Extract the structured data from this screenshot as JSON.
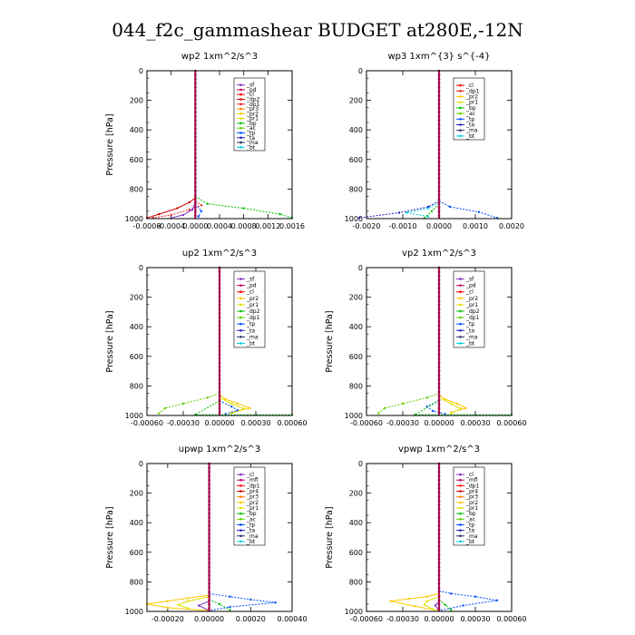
{
  "title": "044_f2c_gammashear  BUDGET at280E,-12N",
  "chart_data": [
    {
      "type": "line",
      "title": "wp2   1xm^2/s^3",
      "ylabel": "Pressure [hPa]",
      "xlim": [
        -0.0008,
        0.0016
      ],
      "ylim": [
        1000,
        0
      ],
      "xticks": [
        -0.0008,
        -0.0004,
        0.0,
        0.0004,
        0.0008,
        0.0012,
        0.0016
      ],
      "xtick_labels": [
        "-0.0008",
        "-0.0004",
        "0.0000",
        "0.0004",
        "0.0008",
        "0.0012",
        "0.0016"
      ],
      "yticks": [
        0,
        200,
        400,
        600,
        800,
        1000
      ],
      "ytick_labels": [
        "0",
        "200",
        "400",
        "600",
        "800",
        "1000"
      ],
      "legend": [
        "_sf",
        "_pd",
        "_cl",
        "_dp2",
        "_dp1",
        "_pr3",
        "_pr2",
        "_pr1",
        "_bp",
        "_ac",
        "_tp",
        "_ta",
        "_ma",
        "_bt"
      ],
      "legend_colors": [
        "#8030c0",
        "#c00060",
        "#ff0000",
        "#d00000",
        "#e02020",
        "#ff8000",
        "#ffc800",
        "#e0e000",
        "#00c000",
        "#60d000",
        "#0050ff",
        "#2020c0",
        "#303060",
        "#00d0e0"
      ],
      "series": [
        {
          "color": "#00c000",
          "dashed": true,
          "points": [
            [
              0,
              850
            ],
            [
              0.0002,
              900
            ],
            [
              0.0008,
              930
            ],
            [
              0.0014,
              970
            ],
            [
              0.0016,
              995
            ]
          ]
        },
        {
          "color": "#d00000",
          "dashed": false,
          "points": [
            [
              0,
              860
            ],
            [
              -0.0001,
              890
            ],
            [
              -0.0003,
              930
            ],
            [
              -0.0006,
              970
            ],
            [
              -0.0008,
              995
            ]
          ]
        },
        {
          "color": "#e02020",
          "dashed": true,
          "points": [
            [
              0,
              880
            ],
            [
              0.0001,
              910
            ],
            [
              -0.0001,
              940
            ],
            [
              -0.0004,
              975
            ],
            [
              -0.0007,
              995
            ]
          ]
        },
        {
          "color": "#8030c0",
          "dashed": false,
          "points": [
            [
              0,
              890
            ],
            [
              -5e-05,
              940
            ],
            [
              -0.0002,
              975
            ],
            [
              -0.0004,
              995
            ]
          ]
        },
        {
          "color": "#0050ff",
          "dashed": true,
          "points": [
            [
              0,
              900
            ],
            [
              0.0001,
              950
            ],
            [
              5e-05,
              985
            ]
          ]
        }
      ]
    },
    {
      "type": "line",
      "title": "wp3   1xm^{3} s^{-4}",
      "ylabel": "",
      "xlim": [
        -0.002,
        0.002
      ],
      "ylim": [
        1000,
        0
      ],
      "xticks": [
        -0.002,
        -0.001,
        0.0,
        0.001,
        0.002
      ],
      "xtick_labels": [
        "-0.0020",
        "-0.0010",
        "0.0000",
        "0.0010",
        "0.0020"
      ],
      "yticks": [
        0,
        200,
        400,
        600,
        800,
        1000
      ],
      "ytick_labels": [
        "0",
        "200",
        "400",
        "600",
        "800",
        "1000"
      ],
      "legend": [
        "_cl",
        "_dp1",
        "_pr2",
        "_pr1",
        "_bp",
        "_ac",
        "_tp",
        "_ta",
        "_ma",
        "_bt"
      ],
      "legend_colors": [
        "#ff0000",
        "#e02020",
        "#ffc800",
        "#e0e000",
        "#00c000",
        "#60d000",
        "#0050ff",
        "#2020c0",
        "#303060",
        "#00d0e0"
      ],
      "series": [
        {
          "color": "#2020c0",
          "dashed": true,
          "points": [
            [
              0,
              880
            ],
            [
              -0.0003,
              920
            ],
            [
              -0.0011,
              960
            ],
            [
              -0.0022,
              995
            ]
          ]
        },
        {
          "color": "#0050ff",
          "dashed": true,
          "points": [
            [
              0,
              880
            ],
            [
              0.0003,
              920
            ],
            [
              0.0011,
              955
            ],
            [
              0.0016,
              995
            ]
          ]
        },
        {
          "color": "#00d0e0",
          "dashed": true,
          "points": [
            [
              0,
              890
            ],
            [
              -0.0003,
              930
            ],
            [
              -0.0009,
              960
            ],
            [
              -0.0003,
              985
            ]
          ]
        },
        {
          "color": "#00c000",
          "dashed": true,
          "points": [
            [
              0,
              900
            ],
            [
              -0.0002,
              950
            ],
            [
              -0.0004,
              995
            ]
          ]
        }
      ]
    },
    {
      "type": "line",
      "title": "up2   1xm^2/s^3",
      "ylabel": "Pressure [hPa]",
      "xlim": [
        -0.0006,
        0.0006
      ],
      "ylim": [
        1000,
        0
      ],
      "xticks": [
        -0.0006,
        -0.0003,
        0.0,
        0.0003,
        0.0006
      ],
      "xtick_labels": [
        "-0.00060",
        "-0.00030",
        "0.00000",
        "0.00030",
        "0.00060"
      ],
      "yticks": [
        0,
        200,
        400,
        600,
        800,
        1000
      ],
      "ytick_labels": [
        "0",
        "200",
        "400",
        "600",
        "800",
        "1000"
      ],
      "legend": [
        "_sf",
        "_pd",
        "_cl",
        "_pr2",
        "_pr1",
        "_dp2",
        "_dp1",
        "_tp",
        "_ta",
        "_ma",
        "_bt"
      ],
      "legend_colors": [
        "#8030c0",
        "#c00060",
        "#ff0000",
        "#ffc800",
        "#e0e000",
        "#00c000",
        "#60d000",
        "#0050ff",
        "#2020c0",
        "#303060",
        "#00d0e0"
      ],
      "series": [
        {
          "color": "#60d000",
          "dashed": true,
          "points": [
            [
              0,
              850
            ],
            [
              -0.0001,
              880
            ],
            [
              -0.0003,
              920
            ],
            [
              -0.00045,
              950
            ],
            [
              -0.0005,
              985
            ]
          ]
        },
        {
          "color": "#ffc800",
          "dashed": false,
          "points": [
            [
              0,
              860
            ],
            [
              5e-05,
              890
            ],
            [
              0.00015,
              920
            ],
            [
              0.00025,
              950
            ],
            [
              0.0001,
              980
            ]
          ]
        },
        {
          "color": "#e0e000",
          "dashed": false,
          "points": [
            [
              0,
              880
            ],
            [
              0.0001,
              920
            ],
            [
              0.0002,
              955
            ],
            [
              0.0001,
              985
            ]
          ]
        },
        {
          "color": "#0050ff",
          "dashed": true,
          "points": [
            [
              0,
              900
            ],
            [
              0.0001,
              940
            ],
            [
              0.00015,
              965
            ],
            [
              5e-05,
              990
            ]
          ]
        },
        {
          "color": "#00c000",
          "dashed": true,
          "points": [
            [
              0,
              900
            ],
            [
              -0.0002,
              995
            ],
            [
              0.0006,
              995
            ]
          ]
        }
      ]
    },
    {
      "type": "line",
      "title": "vp2   1xm^2/s^3",
      "ylabel": "Pressure [hPa]",
      "xlim": [
        -0.0006,
        0.0006
      ],
      "ylim": [
        1000,
        0
      ],
      "xticks": [
        -0.0006,
        -0.0003,
        0.0,
        0.0003,
        0.0006
      ],
      "xtick_labels": [
        "-0.00060",
        "-0.00030",
        "0.00000",
        "0.00030",
        "0.00060"
      ],
      "yticks": [
        0,
        200,
        400,
        600,
        800,
        1000
      ],
      "ytick_labels": [
        "0",
        "200",
        "400",
        "600",
        "800",
        "1000"
      ],
      "legend": [
        "_sf",
        "_pd",
        "_cl",
        "_pr2",
        "_pr1",
        "_dp2",
        "_dp1",
        "_tp",
        "_ta",
        "_ma",
        "_bt"
      ],
      "legend_colors": [
        "#8030c0",
        "#c00060",
        "#ff0000",
        "#ffc800",
        "#e0e000",
        "#00c000",
        "#60d000",
        "#0050ff",
        "#2020c0",
        "#303060",
        "#00d0e0"
      ],
      "series": [
        {
          "color": "#60d000",
          "dashed": true,
          "points": [
            [
              0,
              850
            ],
            [
              -0.0001,
              880
            ],
            [
              -0.0003,
              920
            ],
            [
              -0.00045,
              950
            ],
            [
              -0.0005,
              985
            ]
          ]
        },
        {
          "color": "#ffc800",
          "dashed": false,
          "points": [
            [
              0,
              860
            ],
            [
              5e-05,
              890
            ],
            [
              0.00015,
              920
            ],
            [
              0.00022,
              950
            ],
            [
              0.0001,
              980
            ]
          ]
        },
        {
          "color": "#e0e000",
          "dashed": false,
          "points": [
            [
              0,
              880
            ],
            [
              0.0001,
              920
            ],
            [
              0.00018,
              955
            ],
            [
              0.0001,
              985
            ]
          ]
        },
        {
          "color": "#0050ff",
          "dashed": true,
          "points": [
            [
              0,
              900
            ],
            [
              -0.0001,
              940
            ],
            [
              -5e-05,
              970
            ],
            [
              5e-05,
              990
            ]
          ]
        },
        {
          "color": "#00c000",
          "dashed": true,
          "points": [
            [
              0,
              900
            ],
            [
              -0.0002,
              995
            ],
            [
              0.0006,
              995
            ]
          ]
        }
      ]
    },
    {
      "type": "line",
      "title": "upwp   1xm^2/s^3",
      "ylabel": "Pressure [hPa]",
      "xlim": [
        -0.0003,
        0.0004
      ],
      "ylim": [
        1000,
        0
      ],
      "xticks": [
        -0.0002,
        0.0,
        0.0002,
        0.0004
      ],
      "xtick_labels": [
        "-0.00020",
        "0.00000",
        "0.00020",
        "0.00040"
      ],
      "yticks": [
        0,
        200,
        400,
        600,
        800,
        1000
      ],
      "ytick_labels": [
        "0",
        "200",
        "400",
        "600",
        "800",
        "1000"
      ],
      "legend": [
        "_cl",
        "_mfl",
        "_dp1",
        "_pr4",
        "_pr3",
        "_pr2",
        "_pr1",
        "_bp",
        "_ac",
        "_tp",
        "_ta",
        "_ma",
        "_bt"
      ],
      "legend_colors": [
        "#8030c0",
        "#c00060",
        "#ff0000",
        "#d00000",
        "#ff8000",
        "#ffc800",
        "#e0e000",
        "#00c000",
        "#60d000",
        "#0050ff",
        "#2020c0",
        "#303060",
        "#00d0e0"
      ],
      "series": [
        {
          "color": "#0050ff",
          "dashed": true,
          "points": [
            [
              0,
              880
            ],
            [
              0.0001,
              900
            ],
            [
              0.0002,
              920
            ],
            [
              0.00032,
              940
            ],
            [
              0.0001,
              970
            ],
            [
              0,
              995
            ]
          ]
        },
        {
          "color": "#ffc800",
          "dashed": false,
          "points": [
            [
              0,
              890
            ],
            [
              -0.0001,
              910
            ],
            [
              -0.0002,
              930
            ],
            [
              -0.0003,
              950
            ],
            [
              -0.0002,
              975
            ],
            [
              0,
              995
            ]
          ]
        },
        {
          "color": "#e0e000",
          "dashed": false,
          "points": [
            [
              0,
              900
            ],
            [
              -0.0001,
              930
            ],
            [
              -0.00015,
              955
            ],
            [
              -0.0001,
              980
            ]
          ]
        },
        {
          "color": "#00c000",
          "dashed": true,
          "points": [
            [
              0,
              920
            ],
            [
              5e-05,
              950
            ],
            [
              0.0001,
              990
            ]
          ]
        },
        {
          "color": "#8030c0",
          "dashed": false,
          "points": [
            [
              0,
              930
            ],
            [
              -5e-05,
              960
            ],
            [
              0,
              995
            ]
          ]
        }
      ]
    },
    {
      "type": "line",
      "title": "vpwp   1xm^2/s^3",
      "ylabel": "Pressure [hPa]",
      "xlim": [
        -0.0006,
        0.0006
      ],
      "ylim": [
        1000,
        0
      ],
      "xticks": [
        -0.0006,
        -0.0003,
        0.0,
        0.0003,
        0.0006
      ],
      "xtick_labels": [
        "-0.00060",
        "-0.00030",
        "0.00000",
        "0.00030",
        "0.00060"
      ],
      "yticks": [
        0,
        200,
        400,
        600,
        800,
        1000
      ],
      "ytick_labels": [
        "0",
        "200",
        "400",
        "600",
        "800",
        "1000"
      ],
      "legend": [
        "_cl",
        "_mfl",
        "_dp1",
        "_pr4",
        "_pr3",
        "_pr2",
        "_pr1",
        "_bp",
        "_ac",
        "_tp",
        "_ta",
        "_ma",
        "_bt"
      ],
      "legend_colors": [
        "#8030c0",
        "#c00060",
        "#ff0000",
        "#d00000",
        "#ff8000",
        "#ffc800",
        "#e0e000",
        "#00c000",
        "#60d000",
        "#0050ff",
        "#2020c0",
        "#303060",
        "#00d0e0"
      ],
      "series": [
        {
          "color": "#0050ff",
          "dashed": true,
          "points": [
            [
              0,
              860
            ],
            [
              0.0001,
              880
            ],
            [
              0.0003,
              900
            ],
            [
              0.00048,
              925
            ],
            [
              0.0002,
              960
            ],
            [
              0,
              995
            ]
          ]
        },
        {
          "color": "#ffc800",
          "dashed": false,
          "points": [
            [
              0,
              880
            ],
            [
              -0.0001,
              900
            ],
            [
              -0.00025,
              915
            ],
            [
              -0.0004,
              930
            ],
            [
              -0.0002,
              965
            ],
            [
              0,
              995
            ]
          ]
        },
        {
          "color": "#e0e000",
          "dashed": false,
          "points": [
            [
              0,
              900
            ],
            [
              -0.0001,
              930
            ],
            [
              -0.00012,
              955
            ],
            [
              -5e-05,
              985
            ]
          ]
        },
        {
          "color": "#00c000",
          "dashed": true,
          "points": [
            [
              0,
              920
            ],
            [
              5e-05,
              955
            ],
            [
              0.0001,
              990
            ]
          ]
        },
        {
          "color": "#8030c0",
          "dashed": false,
          "points": [
            [
              0,
              930
            ],
            [
              -3e-05,
              960
            ],
            [
              0,
              995
            ]
          ]
        }
      ]
    }
  ]
}
